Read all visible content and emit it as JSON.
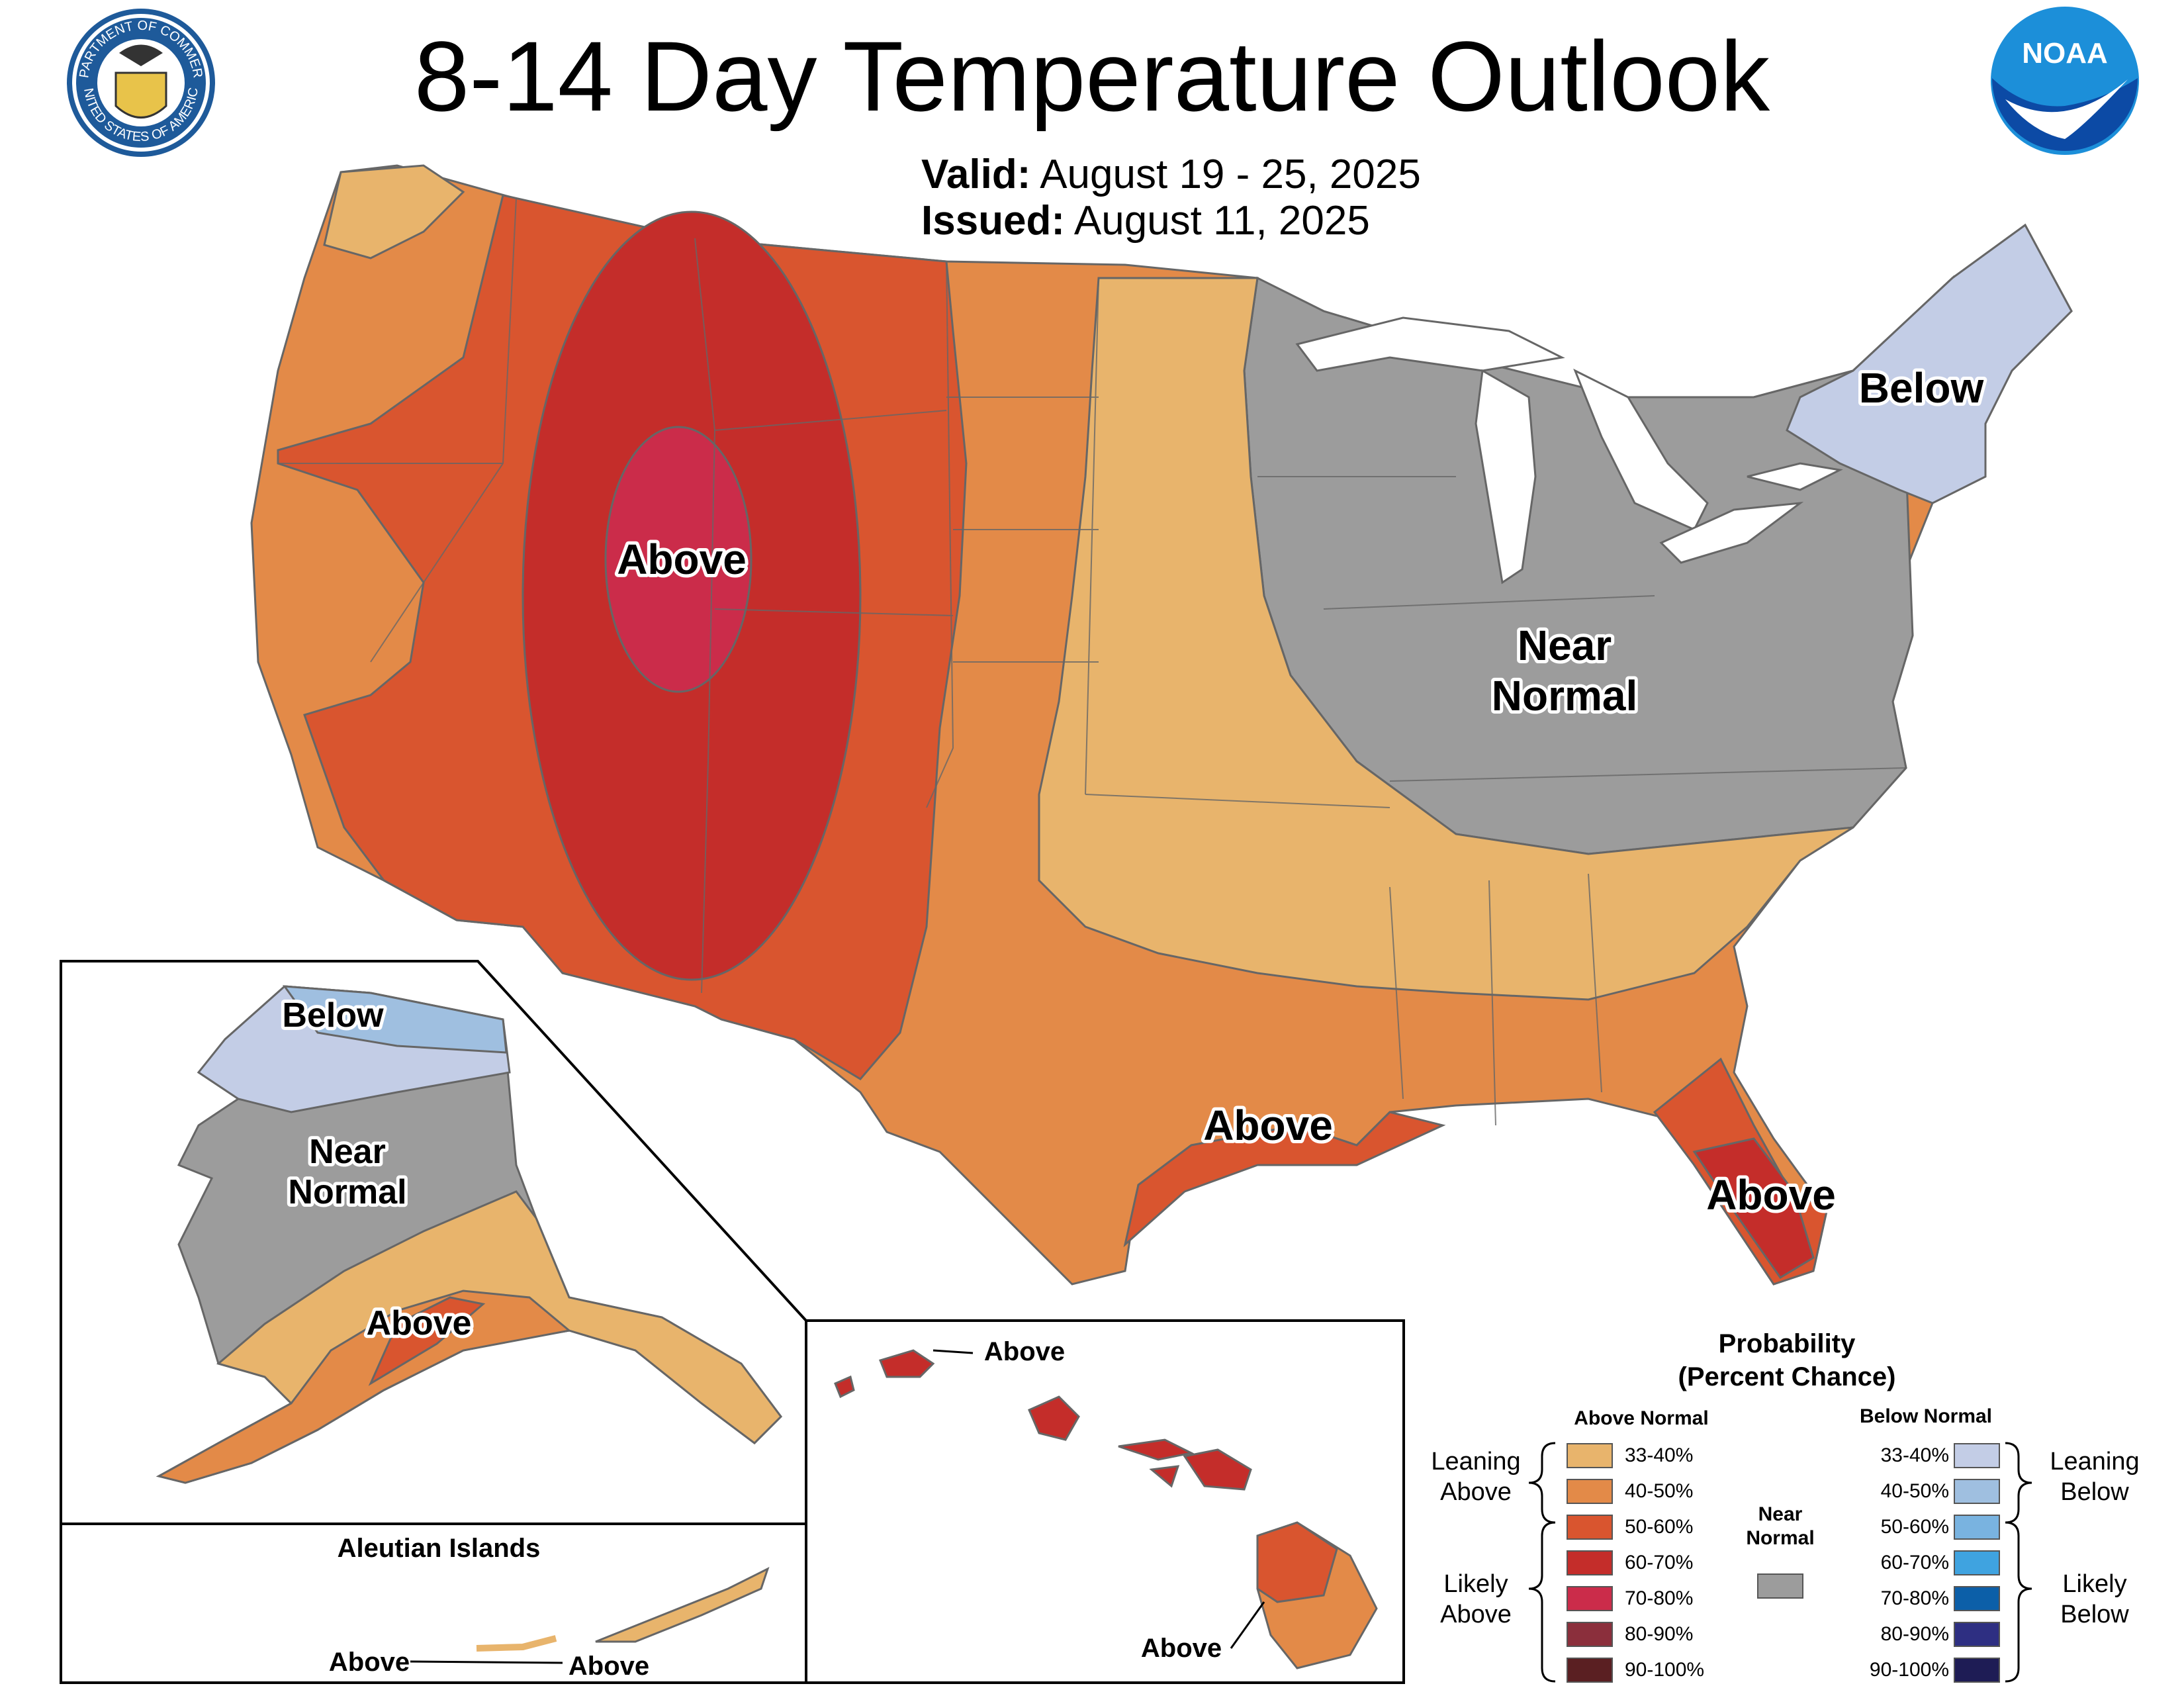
{
  "header": {
    "title": "8-14 Day Temperature Outlook",
    "valid_label": "Valid:",
    "valid_value": "August 19 - 25, 2025",
    "issued_label": "Issued:",
    "issued_value": "August 11, 2025"
  },
  "logos": {
    "commerce_ring_text_top": "DEPARTMENT OF COMMERCE",
    "commerce_ring_text_bottom": "UNITED STATES OF AMERICA",
    "noaa_text": "NOAA",
    "commerce_icon": "commerce-seal-icon",
    "noaa_icon": "noaa-logo-icon"
  },
  "conus_labels": {
    "west": "Above",
    "northeast": "Below",
    "near_normal_1": "Near",
    "near_normal_2": "Normal",
    "gulf": "Above",
    "florida": "Above"
  },
  "alaska_labels": {
    "north": "Below",
    "near_1": "Near",
    "near_2": "Normal",
    "south": "Above"
  },
  "aleutian": {
    "title": "Aleutian Islands",
    "label_left": "Above",
    "label_right": "Above"
  },
  "hawaii": {
    "label_top": "Above",
    "label_bottom": "Above"
  },
  "legend": {
    "title_1": "Probability",
    "title_2": "(Percent Chance)",
    "above_head": "Above Normal",
    "below_head": "Below Normal",
    "near_head_1": "Near",
    "near_head_2": "Normal",
    "leaning_above_1": "Leaning",
    "leaning_above_2": "Above",
    "likely_above_1": "Likely",
    "likely_above_2": "Above",
    "leaning_below_1": "Leaning",
    "leaning_below_2": "Below",
    "likely_below_1": "Likely",
    "likely_below_2": "Below",
    "above_bins": [
      {
        "range": "33-40%",
        "color": "#e8b46c"
      },
      {
        "range": "40-50%",
        "color": "#e38a48"
      },
      {
        "range": "50-60%",
        "color": "#d9552f"
      },
      {
        "range": "60-70%",
        "color": "#c42d2a"
      },
      {
        "range": "70-80%",
        "color": "#cb2c4a"
      },
      {
        "range": "80-90%",
        "color": "#8b2f3c"
      },
      {
        "range": "90-100%",
        "color": "#5a1f22"
      }
    ],
    "below_bins": [
      {
        "range": "33-40%",
        "color": "#c3cde6"
      },
      {
        "range": "40-50%",
        "color": "#9fbfe0"
      },
      {
        "range": "50-60%",
        "color": "#79b3e0"
      },
      {
        "range": "60-70%",
        "color": "#3fa3e0"
      },
      {
        "range": "70-80%",
        "color": "#0c5fa8"
      },
      {
        "range": "80-90%",
        "color": "#2e2f82"
      },
      {
        "range": "90-100%",
        "color": "#1e1c55"
      }
    ],
    "near_color": "#9c9c9c"
  }
}
